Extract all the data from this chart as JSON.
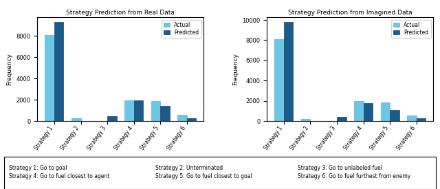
{
  "left_title": "Strategy Prediction from Real Data",
  "right_title": "Strategy Prediction from Imagined Data",
  "categories": [
    "Strategy 1",
    "Strategy 2",
    "Strategy 3",
    "Strategy 4",
    "Strategy 5",
    "Strategy 6"
  ],
  "left_actual": [
    8100,
    250,
    0,
    1950,
    1850,
    580
  ],
  "left_predicted": [
    9300,
    30,
    450,
    1950,
    1450,
    270
  ],
  "right_actual": [
    8100,
    230,
    0,
    1950,
    1850,
    530
  ],
  "right_predicted": [
    9800,
    30,
    420,
    1800,
    1100,
    250
  ],
  "color_actual": "#6EC6E6",
  "color_predicted": "#1C5A8A",
  "ylabel": "Frequency",
  "footnote_col1": "Strategy 1: Go to goal\nStrategy 4: Go to fuel closest to agent",
  "footnote_col2": "Strategy 2: Unterminated\nStrategy 5: Go to fuel closest to goal",
  "footnote_col3": "Strategy 3: Go to unlabeled fuel\nStrategy 6: Go to fuel furthest from enemy"
}
